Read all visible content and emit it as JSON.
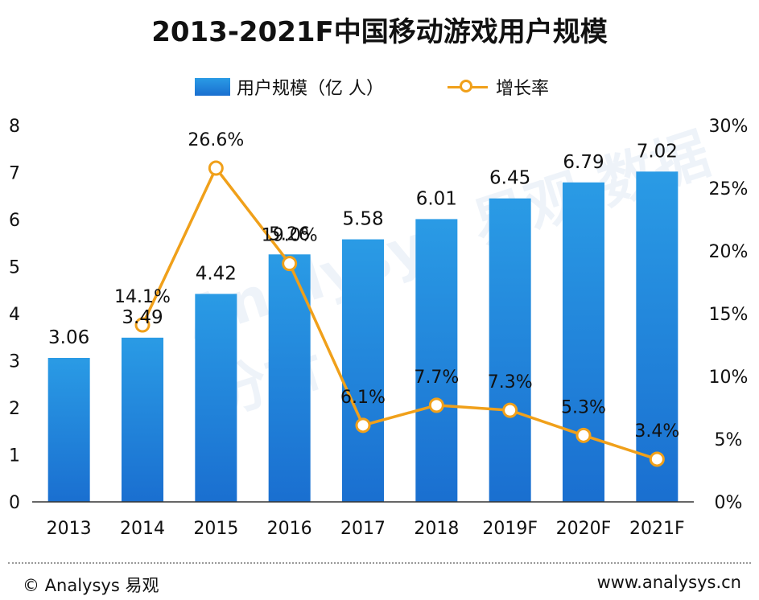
{
  "chart_data": {
    "type": "bar",
    "title": "2013-2021F中国移动游戏用户规模",
    "categories": [
      "2013",
      "2014",
      "2015",
      "2016",
      "2017",
      "2018",
      "2019F",
      "2020F",
      "2021F"
    ],
    "series": [
      {
        "name": "用户规模（亿 人）",
        "type": "bar",
        "axis": "left",
        "values": [
          3.06,
          3.49,
          4.42,
          5.26,
          5.58,
          6.01,
          6.45,
          6.79,
          7.02
        ],
        "labels": [
          "3.06",
          "3.49",
          "4.42",
          "5.26",
          "5.58",
          "6.01",
          "6.45",
          "6.79",
          "7.02"
        ]
      },
      {
        "name": "增长率",
        "type": "line",
        "axis": "right",
        "values": [
          null,
          14.1,
          26.6,
          19.0,
          6.1,
          7.7,
          7.3,
          5.3,
          3.4
        ],
        "labels": [
          "",
          "14.1%",
          "26.6%",
          "19.0%",
          "6.1%",
          "7.7%",
          "7.3%",
          "5.3%",
          "3.4%"
        ]
      }
    ],
    "y_left": {
      "min": 0,
      "max": 8,
      "ticks": [
        "0",
        "1",
        "2",
        "3",
        "4",
        "5",
        "6",
        "7",
        "8"
      ]
    },
    "y_right": {
      "min": 0,
      "max": 30,
      "ticks": [
        "0%",
        "5%",
        "10%",
        "15%",
        "20%",
        "25%",
        "30%"
      ]
    },
    "legend_position": "top-center",
    "colors": {
      "bar_top": "#2a9be5",
      "bar_bottom": "#1a6fd0",
      "line": "#f0a01a",
      "axis": "#333333"
    }
  },
  "legend": {
    "bar_label": "用户规模（亿 人）",
    "line_label": "增长率"
  },
  "watermark": "Analysys 易观 数据分析",
  "footer": {
    "left": "© Analysys 易观",
    "right": "www.analysys.cn"
  }
}
